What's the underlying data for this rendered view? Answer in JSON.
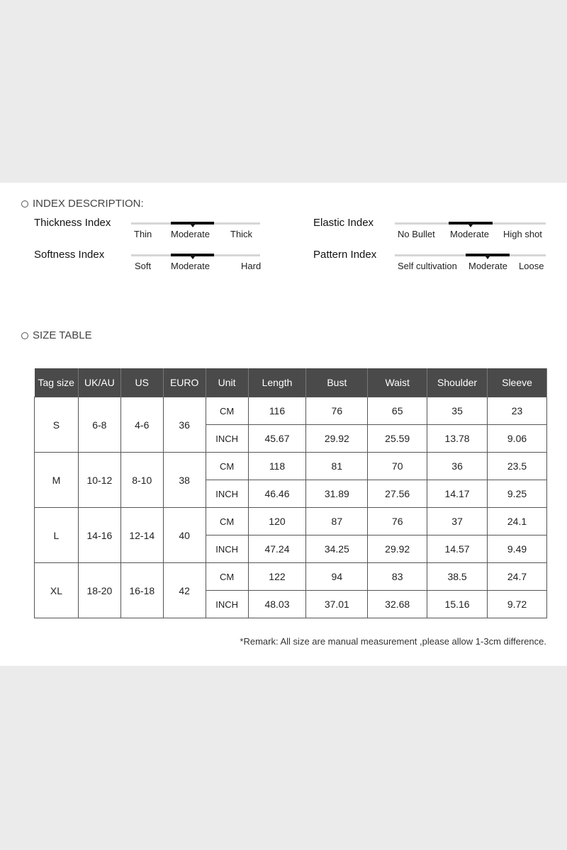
{
  "index_section": {
    "title": "INDEX DESCRIPTION:",
    "items": [
      {
        "name": "Thickness Index",
        "options": [
          "Thin",
          "Moderate",
          "Thick"
        ],
        "selected": "Moderate"
      },
      {
        "name": "Softness Index",
        "options": [
          "Soft",
          "Moderate",
          "Hard"
        ],
        "selected": "Moderate"
      },
      {
        "name": "Elastic Index",
        "options": [
          "No Bullet",
          "Moderate",
          "High shot"
        ],
        "selected": "Moderate"
      },
      {
        "name": "Pattern Index",
        "options": [
          "Self cultivation",
          "Moderate",
          "Loose"
        ],
        "selected": "Moderate"
      }
    ]
  },
  "size_section": {
    "title": "SIZE TABLE"
  },
  "table": {
    "headers": [
      "Tag size",
      "UK/AU",
      "US",
      "EURO",
      "Unit",
      "Length",
      "Bust",
      "Waist",
      "Shoulder",
      "Sleeve"
    ],
    "rows": [
      {
        "tag": "S",
        "uk": "6-8",
        "us": "4-6",
        "euro": "36",
        "cm": [
          "116",
          "76",
          "65",
          "35",
          "23"
        ],
        "inch": [
          "45.67",
          "29.92",
          "25.59",
          "13.78",
          "9.06"
        ]
      },
      {
        "tag": "M",
        "uk": "10-12",
        "us": "8-10",
        "euro": "38",
        "cm": [
          "118",
          "81",
          "70",
          "36",
          "23.5"
        ],
        "inch": [
          "46.46",
          "31.89",
          "27.56",
          "14.17",
          "9.25"
        ]
      },
      {
        "tag": "L",
        "uk": "14-16",
        "us": "12-14",
        "euro": "40",
        "cm": [
          "120",
          "87",
          "76",
          "37",
          "24.1"
        ],
        "inch": [
          "47.24",
          "34.25",
          "29.92",
          "14.57",
          "9.49"
        ]
      },
      {
        "tag": "XL",
        "uk": "18-20",
        "us": "16-18",
        "euro": "42",
        "cm": [
          "122",
          "94",
          "83",
          "38.5",
          "24.7"
        ],
        "inch": [
          "48.03",
          "37.01",
          "32.68",
          "15.16",
          "9.72"
        ]
      }
    ],
    "unit_cm": "CM",
    "unit_inch": "INCH"
  },
  "remark": "*Remark: All size are manual measurement ,please allow 1-3cm difference."
}
